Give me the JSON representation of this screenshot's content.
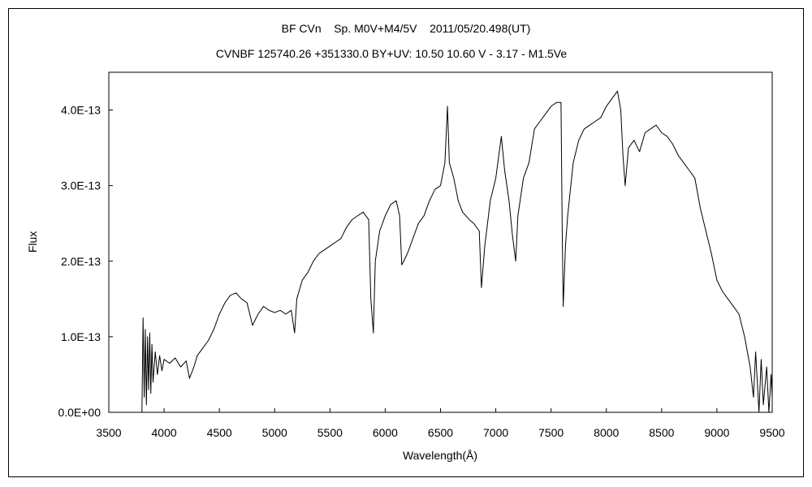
{
  "chart_data": {
    "type": "line",
    "title": "BF CVn    Sp. M0V+M4/5V    2011/05/20.498(UT)",
    "subtitle": "CVNBF 125740.26 +351330.0 BY+UV: 10.50 10.60 V - 3.17 - M1.5Ve",
    "xlabel": "Wavelength(Å)",
    "ylabel": "Flux",
    "xlim": [
      3500,
      9500
    ],
    "ylim": [
      0,
      4.5e-13
    ],
    "x_ticks": [
      3500,
      4000,
      4500,
      5000,
      5500,
      6000,
      6500,
      7000,
      7500,
      8000,
      8500,
      9000,
      9500
    ],
    "x_tick_labels": [
      "3500",
      "4000",
      "4500",
      "5000",
      "5500",
      "6000",
      "6500",
      "7000",
      "7500",
      "8000",
      "8500",
      "9000",
      "9500"
    ],
    "y_ticks": [
      0,
      1e-13,
      2e-13,
      3e-13,
      4e-13
    ],
    "y_tick_labels": [
      "0.0E+00",
      "1.0E-13",
      "2.0E-13",
      "3.0E-13",
      "4.0E-13"
    ],
    "grid": false,
    "series": [
      {
        "color": "#000000",
        "points": [
          [
            3800,
            0
          ],
          [
            3810,
            1.25e-13
          ],
          [
            3820,
            2e-14
          ],
          [
            3830,
            1.1e-13
          ],
          [
            3840,
            1e-14
          ],
          [
            3850,
            1e-13
          ],
          [
            3860,
            3e-14
          ],
          [
            3870,
            1.05e-13
          ],
          [
            3880,
            2.5e-14
          ],
          [
            3890,
            9e-14
          ],
          [
            3900,
            4e-14
          ],
          [
            3920,
            8e-14
          ],
          [
            3940,
            5e-14
          ],
          [
            3960,
            7.5e-14
          ],
          [
            3980,
            5.5e-14
          ],
          [
            4000,
            7e-14
          ],
          [
            4050,
            6.5e-14
          ],
          [
            4100,
            7.2e-14
          ],
          [
            4150,
            6e-14
          ],
          [
            4200,
            6.8e-14
          ],
          [
            4230,
            4.5e-14
          ],
          [
            4270,
            6e-14
          ],
          [
            4300,
            7.5e-14
          ],
          [
            4350,
            8.5e-14
          ],
          [
            4400,
            9.5e-14
          ],
          [
            4450,
            1.1e-13
          ],
          [
            4500,
            1.3e-13
          ],
          [
            4550,
            1.45e-13
          ],
          [
            4600,
            1.55e-13
          ],
          [
            4650,
            1.58e-13
          ],
          [
            4700,
            1.5e-13
          ],
          [
            4750,
            1.45e-13
          ],
          [
            4800,
            1.15e-13
          ],
          [
            4850,
            1.3e-13
          ],
          [
            4900,
            1.4e-13
          ],
          [
            4950,
            1.35e-13
          ],
          [
            5000,
            1.32e-13
          ],
          [
            5050,
            1.35e-13
          ],
          [
            5100,
            1.3e-13
          ],
          [
            5150,
            1.35e-13
          ],
          [
            5180,
            1.05e-13
          ],
          [
            5200,
            1.5e-13
          ],
          [
            5250,
            1.75e-13
          ],
          [
            5300,
            1.85e-13
          ],
          [
            5350,
            2e-13
          ],
          [
            5400,
            2.1e-13
          ],
          [
            5450,
            2.15e-13
          ],
          [
            5500,
            2.2e-13
          ],
          [
            5550,
            2.25e-13
          ],
          [
            5600,
            2.3e-13
          ],
          [
            5650,
            2.45e-13
          ],
          [
            5700,
            2.55e-13
          ],
          [
            5750,
            2.6e-13
          ],
          [
            5800,
            2.65e-13
          ],
          [
            5850,
            2.55e-13
          ],
          [
            5870,
            1.5e-13
          ],
          [
            5893,
            1.05e-13
          ],
          [
            5910,
            2e-13
          ],
          [
            5950,
            2.4e-13
          ],
          [
            6000,
            2.6e-13
          ],
          [
            6050,
            2.75e-13
          ],
          [
            6100,
            2.8e-13
          ],
          [
            6130,
            2.6e-13
          ],
          [
            6150,
            1.95e-13
          ],
          [
            6200,
            2.1e-13
          ],
          [
            6250,
            2.3e-13
          ],
          [
            6300,
            2.5e-13
          ],
          [
            6350,
            2.6e-13
          ],
          [
            6400,
            2.8e-13
          ],
          [
            6450,
            2.95e-13
          ],
          [
            6500,
            3e-13
          ],
          [
            6540,
            3.3e-13
          ],
          [
            6563,
            4.05e-13
          ],
          [
            6580,
            3.3e-13
          ],
          [
            6620,
            3.1e-13
          ],
          [
            6660,
            2.8e-13
          ],
          [
            6700,
            2.65e-13
          ],
          [
            6760,
            2.55e-13
          ],
          [
            6800,
            2.5e-13
          ],
          [
            6850,
            2.4e-13
          ],
          [
            6870,
            1.65e-13
          ],
          [
            6900,
            2.2e-13
          ],
          [
            6950,
            2.8e-13
          ],
          [
            7000,
            3.1e-13
          ],
          [
            7050,
            3.65e-13
          ],
          [
            7080,
            3.2e-13
          ],
          [
            7120,
            2.8e-13
          ],
          [
            7150,
            2.35e-13
          ],
          [
            7180,
            2e-13
          ],
          [
            7200,
            2.6e-13
          ],
          [
            7250,
            3.1e-13
          ],
          [
            7300,
            3.3e-13
          ],
          [
            7350,
            3.75e-13
          ],
          [
            7400,
            3.85e-13
          ],
          [
            7450,
            3.95e-13
          ],
          [
            7500,
            4.05e-13
          ],
          [
            7550,
            4.1e-13
          ],
          [
            7590,
            4.1e-13
          ],
          [
            7600,
            2.5e-13
          ],
          [
            7610,
            1.4e-13
          ],
          [
            7630,
            2.2e-13
          ],
          [
            7650,
            2.6e-13
          ],
          [
            7700,
            3.3e-13
          ],
          [
            7750,
            3.6e-13
          ],
          [
            7800,
            3.75e-13
          ],
          [
            7850,
            3.8e-13
          ],
          [
            7900,
            3.85e-13
          ],
          [
            7950,
            3.9e-13
          ],
          [
            8000,
            4.05e-13
          ],
          [
            8050,
            4.15e-13
          ],
          [
            8100,
            4.25e-13
          ],
          [
            8130,
            4e-13
          ],
          [
            8150,
            3.4e-13
          ],
          [
            8170,
            3e-13
          ],
          [
            8200,
            3.5e-13
          ],
          [
            8250,
            3.6e-13
          ],
          [
            8300,
            3.45e-13
          ],
          [
            8350,
            3.7e-13
          ],
          [
            8400,
            3.75e-13
          ],
          [
            8450,
            3.8e-13
          ],
          [
            8500,
            3.7e-13
          ],
          [
            8550,
            3.65e-13
          ],
          [
            8600,
            3.55e-13
          ],
          [
            8650,
            3.4e-13
          ],
          [
            8700,
            3.3e-13
          ],
          [
            8750,
            3.2e-13
          ],
          [
            8800,
            3.1e-13
          ],
          [
            8850,
            2.7e-13
          ],
          [
            8900,
            2.4e-13
          ],
          [
            8950,
            2.1e-13
          ],
          [
            9000,
            1.75e-13
          ],
          [
            9050,
            1.6e-13
          ],
          [
            9100,
            1.5e-13
          ],
          [
            9150,
            1.4e-13
          ],
          [
            9200,
            1.3e-13
          ],
          [
            9250,
            1e-13
          ],
          [
            9300,
            6e-14
          ],
          [
            9330,
            2e-14
          ],
          [
            9350,
            8e-14
          ],
          [
            9380,
            0
          ],
          [
            9400,
            7e-14
          ],
          [
            9420,
            1e-14
          ],
          [
            9450,
            6e-14
          ],
          [
            9470,
            0
          ],
          [
            9490,
            5e-14
          ],
          [
            9500,
            2e-14
          ]
        ]
      }
    ]
  }
}
